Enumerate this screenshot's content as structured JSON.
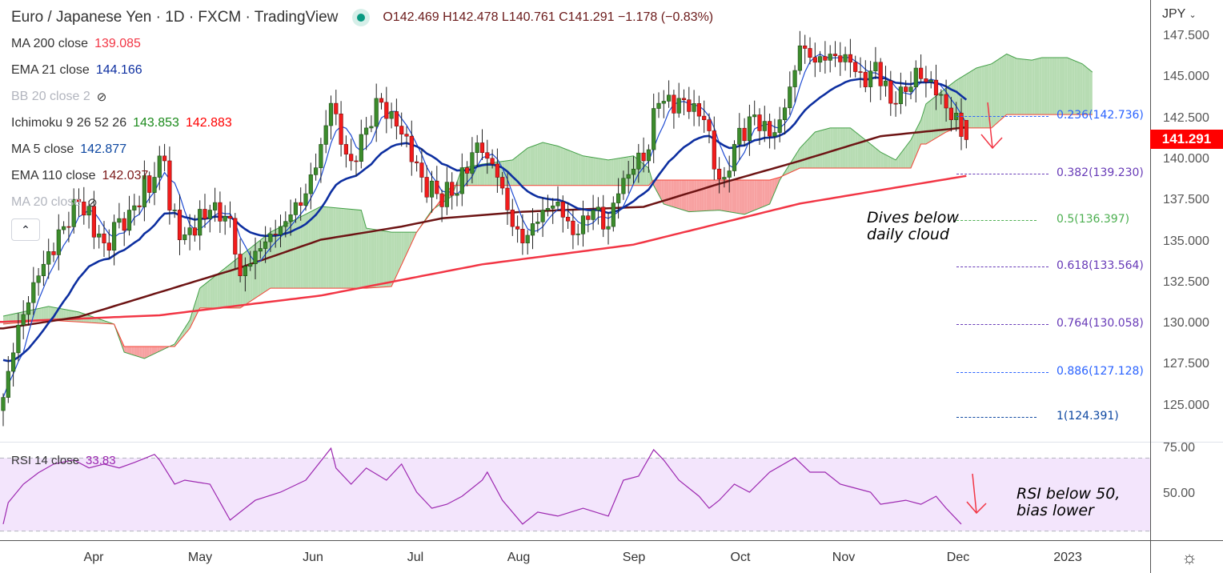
{
  "header": {
    "title": "Euro / Japanese Yen · 1D · FXCM · TradingView",
    "ohlc": "O142.469 H142.478 L140.761 C141.291 −1.178 (−0.83%)"
  },
  "legend": [
    {
      "label": "MA 200 close",
      "value": "139.085",
      "color": "#f23645"
    },
    {
      "label": "EMA 21 close",
      "value": "144.166",
      "color": "#0d2fa0"
    },
    {
      "label": "BB 20 close 2",
      "value": "",
      "color": "#b2b5be",
      "hidden": true
    },
    {
      "label": "Ichimoku 9 26 52 26",
      "value": "143.853",
      "value2": "142.883",
      "color": "#1b8a1b",
      "color2": "#f00"
    },
    {
      "label": "MA 5 close",
      "value": "142.877",
      "color": "#0d47a1"
    },
    {
      "label": "EMA 110 close",
      "value": "142.037",
      "color": "#7b1a1a"
    },
    {
      "label": "MA 20 close",
      "value": "",
      "color": "#b2b5be",
      "hidden": true
    }
  ],
  "price_axis": {
    "currency": "JPY",
    "ticks": [
      "147.500",
      "145.000",
      "142.500",
      "140.000",
      "137.500",
      "135.000",
      "132.500",
      "130.000",
      "127.500",
      "125.000"
    ],
    "last_price": "141.291"
  },
  "rsi": {
    "label": "RSI 14 close",
    "value": "33.83",
    "ticks": [
      "75.00",
      "50.00"
    ]
  },
  "time_axis": [
    "Apr",
    "May",
    "Jun",
    "Jul",
    "Aug",
    "Sep",
    "Oct",
    "Nov",
    "Dec",
    "2023"
  ],
  "annotations": {
    "cloud": [
      "Dives below",
      "daily cloud"
    ],
    "rsi": [
      "RSI below 50,",
      "bias lower"
    ]
  },
  "fib": [
    {
      "label": "0.236(142.736)",
      "price": 142.736,
      "color": "#2962ff"
    },
    {
      "label": "0.382(139.230)",
      "price": 139.23,
      "color": "#673ab7"
    },
    {
      "label": "0.5(136.397)",
      "price": 136.397,
      "color": "#4caf50"
    },
    {
      "label": "0.618(133.564)",
      "price": 133.564,
      "color": "#673ab7"
    },
    {
      "label": "0.764(130.058)",
      "price": 130.058,
      "color": "#673ab7"
    },
    {
      "label": "0.886(127.128)",
      "price": 127.128,
      "color": "#2962ff"
    },
    {
      "label": "1(124.391)",
      "price": 124.391,
      "color": "#0d47a1"
    }
  ],
  "chart_data": {
    "type": "candlestick",
    "title": "Euro / Japanese Yen · 1D · FXCM",
    "x_unit": "trading day index (Mar 2022 – Dec 2022)",
    "ylim": [
      122.6,
      149.8
    ],
    "last_bar": {
      "open": 142.469,
      "high": 142.478,
      "low": 140.761,
      "close": 141.291
    },
    "close_waypoints": [
      [
        0,
        125.6
      ],
      [
        3,
        130
      ],
      [
        7,
        133
      ],
      [
        12,
        136
      ],
      [
        15,
        137.5
      ],
      [
        20,
        135
      ],
      [
        25,
        137
      ],
      [
        30,
        139
      ],
      [
        32,
        140
      ],
      [
        33,
        137
      ],
      [
        36,
        135.5
      ],
      [
        41,
        137
      ],
      [
        45,
        136.5
      ],
      [
        47,
        133
      ],
      [
        50,
        134.5
      ],
      [
        55,
        136
      ],
      [
        60,
        138
      ],
      [
        63,
        141
      ],
      [
        65,
        143.5
      ],
      [
        67,
        141
      ],
      [
        69,
        140
      ],
      [
        72,
        142
      ],
      [
        74,
        143.8
      ],
      [
        77,
        143
      ],
      [
        80,
        141.5
      ],
      [
        83,
        139
      ],
      [
        86,
        138
      ],
      [
        90,
        138
      ],
      [
        93,
        140.5
      ],
      [
        95,
        140.5
      ],
      [
        98,
        139
      ],
      [
        101,
        136
      ],
      [
        103,
        135
      ],
      [
        107,
        137
      ],
      [
        110,
        137.5
      ],
      [
        113,
        135.5
      ],
      [
        117,
        137
      ],
      [
        120,
        136
      ],
      [
        122,
        138
      ],
      [
        125,
        139.5
      ],
      [
        127,
        140
      ],
      [
        130,
        143.5
      ],
      [
        132,
        144
      ],
      [
        136,
        143
      ],
      [
        139,
        142.5
      ],
      [
        141,
        139.5
      ],
      [
        143,
        139
      ],
      [
        145,
        141
      ],
      [
        149,
        142.8
      ],
      [
        152,
        141.5
      ],
      [
        154,
        142.5
      ],
      [
        157,
        145.5
      ],
      [
        158,
        147
      ],
      [
        161,
        146
      ],
      [
        164,
        146.5
      ],
      [
        168,
        146
      ],
      [
        171,
        144.5
      ],
      [
        173,
        146
      ],
      [
        176,
        143.5
      ],
      [
        178,
        144.5
      ],
      [
        182,
        145
      ],
      [
        185,
        144
      ],
      [
        188,
        142.5
      ],
      [
        191,
        141.291
      ]
    ],
    "ma200": [
      [
        0,
        130.2
      ],
      [
        31,
        130.6
      ],
      [
        63,
        131.8
      ],
      [
        95,
        133.7
      ],
      [
        125,
        134.9
      ],
      [
        158,
        137.4
      ],
      [
        191,
        139.085
      ]
    ],
    "ema110": [
      [
        0,
        129.8
      ],
      [
        15,
        130.5
      ],
      [
        31,
        132
      ],
      [
        47,
        133.5
      ],
      [
        63,
        135.2
      ],
      [
        79,
        136
      ],
      [
        87,
        136.5
      ],
      [
        103,
        136.9
      ],
      [
        127,
        137.2
      ],
      [
        142,
        138.6
      ],
      [
        158,
        140
      ],
      [
        174,
        141.5
      ],
      [
        191,
        142.037
      ]
    ],
    "ichimoku_cloud": [
      [
        0,
        130.55,
        130.06
      ],
      [
        9,
        131.14,
        130.3
      ],
      [
        15,
        130.8,
        130.2
      ],
      [
        22,
        130.06,
        130.06
      ],
      [
        24,
        128.35,
        128.7
      ],
      [
        28,
        127.97,
        128.7
      ],
      [
        34,
        128.85,
        128.7
      ],
      [
        37,
        130.3,
        129.8
      ],
      [
        39,
        132.25,
        131.04
      ],
      [
        47,
        134.2,
        131.04
      ],
      [
        53,
        135.66,
        132.25
      ],
      [
        63,
        137.22,
        132.25
      ],
      [
        71,
        137.0,
        132.25
      ],
      [
        72,
        135.9,
        132.25
      ],
      [
        77,
        135.66,
        132.35
      ],
      [
        82,
        135.66,
        135.66
      ],
      [
        85,
        137.0,
        136.9
      ],
      [
        89,
        137.85,
        138.5
      ],
      [
        91,
        139.56,
        138.5
      ],
      [
        95,
        139.8,
        138.5
      ],
      [
        101,
        140.05,
        138.5
      ],
      [
        104,
        140.78,
        138.5
      ],
      [
        107,
        141.12,
        138.5
      ],
      [
        110,
        140.9,
        138.5
      ],
      [
        115,
        140.3,
        138.5
      ],
      [
        120,
        140.05,
        138.5
      ],
      [
        125,
        140.3,
        138.5
      ],
      [
        128,
        139.56,
        138.5
      ],
      [
        129,
        138.5,
        138.83
      ],
      [
        131,
        137.37,
        138.83
      ],
      [
        136,
        136.9,
        138.83
      ],
      [
        142,
        137.0,
        138.83
      ],
      [
        147,
        136.74,
        138.83
      ],
      [
        152,
        137.37,
        138.83
      ],
      [
        154,
        138.83,
        139.0
      ],
      [
        158,
        140.78,
        139.56
      ],
      [
        161,
        141.75,
        139.56
      ],
      [
        164,
        142.0,
        139.56
      ],
      [
        168,
        142.0,
        139.56
      ],
      [
        171,
        141.27,
        139.56
      ],
      [
        174,
        140.53,
        139.56
      ],
      [
        177,
        140.05,
        139.56
      ],
      [
        180,
        141.27,
        139.56
      ],
      [
        182,
        142.48,
        141.02
      ],
      [
        183,
        143.46,
        141.02
      ],
      [
        187,
        144.43,
        141.75
      ],
      [
        189,
        144.9,
        142.0
      ],
      [
        193,
        145.65,
        142.0
      ],
      [
        196,
        145.9,
        142.0
      ],
      [
        199,
        146.5,
        142.82
      ],
      [
        201,
        146.23,
        142.82
      ],
      [
        204,
        146.13,
        142.82
      ],
      [
        206,
        146.28,
        142.82
      ],
      [
        211,
        146.28,
        142.82
      ],
      [
        214,
        145.9,
        142.82
      ],
      [
        216,
        145.4,
        142.82
      ]
    ],
    "rsi": [
      [
        0,
        33.8
      ],
      [
        1,
        45.6
      ],
      [
        4,
        55.7
      ],
      [
        7,
        62
      ],
      [
        10,
        66.7
      ],
      [
        14,
        69
      ],
      [
        17,
        64.6
      ],
      [
        20,
        66.7
      ],
      [
        23,
        64.6
      ],
      [
        26,
        67.6
      ],
      [
        30,
        72
      ],
      [
        31,
        69
      ],
      [
        34,
        55.7
      ],
      [
        36,
        57.9
      ],
      [
        41,
        55.7
      ],
      [
        45,
        36
      ],
      [
        47,
        40.4
      ],
      [
        50,
        46.9
      ],
      [
        55,
        51.3
      ],
      [
        60,
        57.9
      ],
      [
        65,
        75.4
      ],
      [
        66,
        64.5
      ],
      [
        69,
        55.7
      ],
      [
        72,
        64.5
      ],
      [
        76,
        57.9
      ],
      [
        79,
        66.7
      ],
      [
        82,
        51.3
      ],
      [
        85,
        42.5
      ],
      [
        88,
        44.7
      ],
      [
        91,
        49.1
      ],
      [
        95,
        57.9
      ],
      [
        96,
        62.3
      ],
      [
        99,
        46.9
      ],
      [
        103,
        33.8
      ],
      [
        106,
        40.4
      ],
      [
        110,
        38.2
      ],
      [
        115,
        42.5
      ],
      [
        120,
        38.2
      ],
      [
        123,
        57.9
      ],
      [
        126,
        60.1
      ],
      [
        129,
        74.6
      ],
      [
        131,
        68.9
      ],
      [
        134,
        57.9
      ],
      [
        138,
        49.1
      ],
      [
        140,
        42.5
      ],
      [
        142,
        46.9
      ],
      [
        145,
        55.7
      ],
      [
        148,
        51.3
      ],
      [
        152,
        62.3
      ],
      [
        157,
        70.2
      ],
      [
        160,
        62.3
      ],
      [
        163,
        62.3
      ],
      [
        166,
        55.7
      ],
      [
        169,
        53.5
      ],
      [
        172,
        51.3
      ],
      [
        174,
        44.7
      ],
      [
        179,
        46.9
      ],
      [
        182,
        44.7
      ],
      [
        185,
        49.1
      ],
      [
        187,
        42.5
      ],
      [
        190,
        33.83
      ]
    ],
    "rsi_band": [
      30,
      70
    ]
  },
  "colors": {
    "up": "#3c8c2c",
    "down": "#f21c1c",
    "ma200": "#f23645",
    "ema110": "#6d1414",
    "ema21": "#0d2fa0",
    "ma5": "#1e4bd2",
    "cloud_up": "#b7dcb3",
    "cloud_down": "#f7a1a1"
  }
}
